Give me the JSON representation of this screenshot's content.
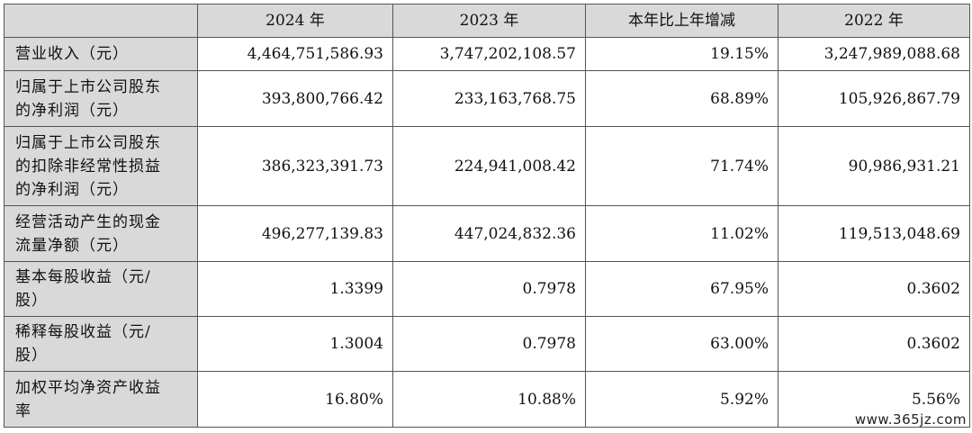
{
  "headers": [
    "",
    "2024 年",
    "2023 年",
    "本年比上年增减",
    "2022 年"
  ],
  "rows": [
    {
      "label_lines": [
        "营业收入（元）"
      ],
      "v2024": "4,464,751,586.93",
      "v2023": "3,747,202,108.57",
      "change": "19.15%",
      "v2022": "3,247,989,088.68"
    },
    {
      "label_lines": [
        "归属于上市公司股东",
        "的净利润（元）"
      ],
      "v2024": "393,800,766.42",
      "v2023": "233,163,768.75",
      "change": "68.89%",
      "v2022": "105,926,867.79"
    },
    {
      "label_lines": [
        "归属于上市公司股东",
        "的扣除非经常性损益",
        "的净利润（元）"
      ],
      "v2024": "386,323,391.73",
      "v2023": "224,941,008.42",
      "change": "71.74%",
      "v2022": "90,986,931.21"
    },
    {
      "label_lines": [
        "经营活动产生的现金",
        "流量净额（元）"
      ],
      "v2024": "496,277,139.83",
      "v2023": "447,024,832.36",
      "change": "11.02%",
      "v2022": "119,513,048.69"
    },
    {
      "label_lines": [
        "基本每股收益（元/",
        "股）"
      ],
      "v2024": "1.3399",
      "v2023": "0.7978",
      "change": "67.95%",
      "v2022": "0.3602"
    },
    {
      "label_lines": [
        "稀释每股收益（元/",
        "股）"
      ],
      "v2024": "1.3004",
      "v2023": "0.7978",
      "change": "63.00%",
      "v2022": "0.3602"
    },
    {
      "label_lines": [
        "加权平均净资产收益",
        "率"
      ],
      "v2024": "16.80%",
      "v2023": "10.88%",
      "change": "5.92%",
      "v2022": "5.56%"
    }
  ],
  "watermark": "www.365jz.com"
}
